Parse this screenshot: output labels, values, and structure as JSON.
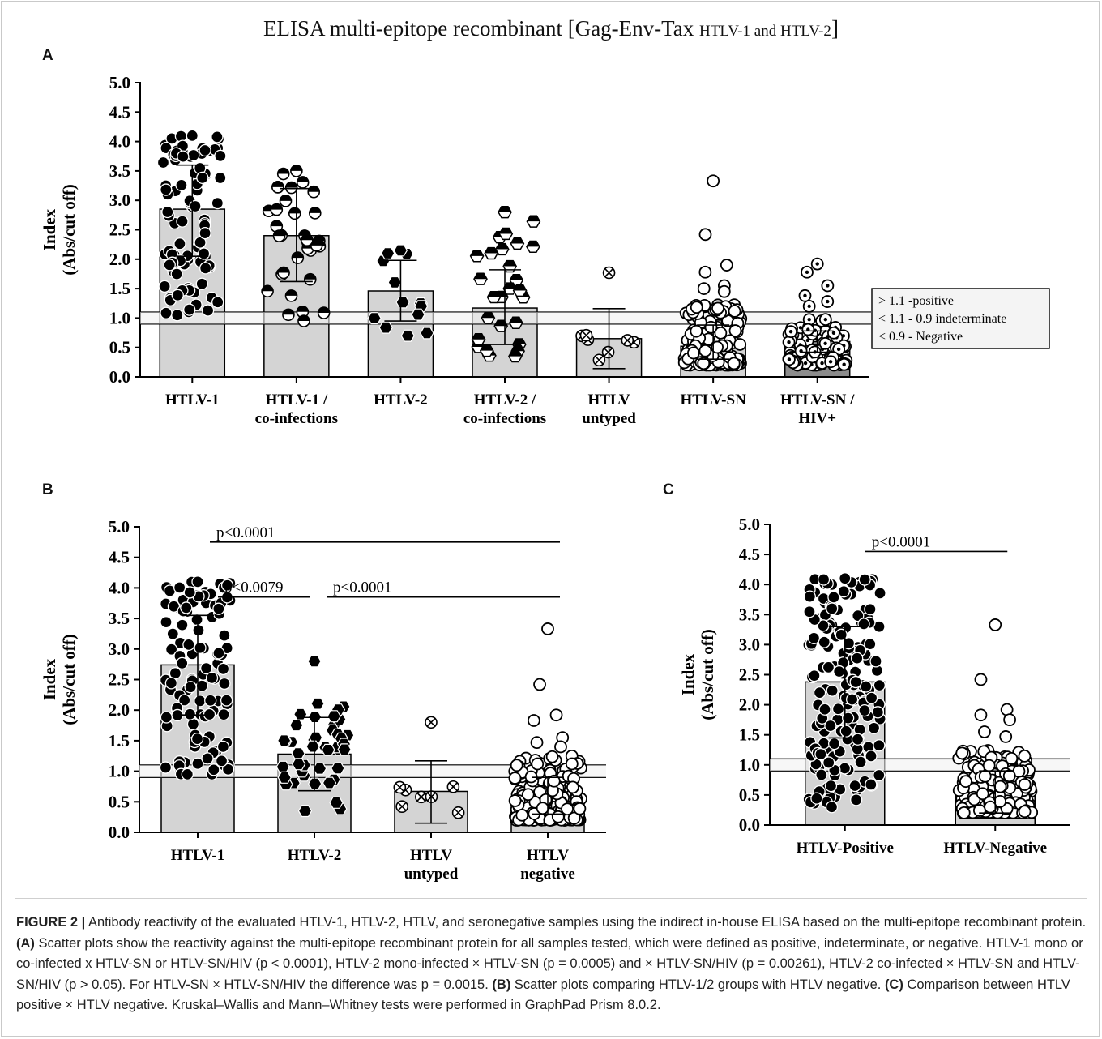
{
  "figure": {
    "title_main": "ELISA multi-epitope recombinant [Gag-Env-Tax",
    "title_sub": "HTLV-1 and HTLV-2",
    "title_close": "]",
    "panel_a": "A",
    "panel_b": "B",
    "panel_c": "C"
  },
  "caption": {
    "label": "FIGURE 2 |",
    "intro": "Antibody reactivity of the evaluated HTLV-1, HTLV-2, HTLV, and seronegative samples using the indirect in-house ELISA based on the multi-epitope recombinant protein.",
    "a_label": "(A)",
    "a_text": "Scatter plots show the reactivity against the multi-epitope recombinant protein for all samples tested, which were defined as positive, indeterminate, or negative. HTLV-1 mono or co-infected x HTLV-SN or HTLV-SN/HIV (p < 0.0001), HTLV-2 mono-infected × HTLV-SN (p = 0.0005) and × HTLV-SN/HIV (p = 0.00261), HTLV-2 co-infected × HTLV-SN and HTLV-SN/HIV (p > 0.05). For HTLV-SN × HTLV-SN/HIV the difference was p = 0.0015.",
    "b_label": "(B)",
    "b_text": "Scatter plots comparing HTLV-1/2 groups with HTLV negative.",
    "c_label": "(C)",
    "c_text": "Comparison between HTLV positive × HTLV negative. Kruskal–Wallis and Mann–Whitney tests were performed in GraphPad Prism 8.0.2."
  },
  "colors": {
    "bar": "#d4d4d4",
    "bar_dark": "#8c8c8c",
    "ink": "#000000"
  },
  "chart_data": [
    {
      "panel": "A",
      "type": "bar",
      "title": "ELISA multi-epitope recombinant [Gag-Env-Tax HTLV-1 and HTLV-2]",
      "ylabel": [
        "Index",
        "(Abs/cut off)"
      ],
      "ylim": [
        0,
        5.0
      ],
      "yticks": [
        "0.0",
        "0.5",
        "1.0",
        "1.5",
        "2.0",
        "2.5",
        "3.0",
        "3.5",
        "4.0",
        "4.5",
        "5.0"
      ],
      "cutoffs": [
        1.1,
        0.9
      ],
      "legend": [
        "> 1.1 -positive",
        "< 1.1 - 0.9 indeterminate",
        "< 0.9 - Negative"
      ],
      "legend_position": "right",
      "categories": [
        [
          "HTLV-1"
        ],
        [
          "HTLV-1 /",
          "co-infections"
        ],
        [
          "HTLV-2"
        ],
        [
          "HTLV-2 /",
          "co-infections"
        ],
        [
          "HTLV",
          "untyped"
        ],
        [
          "HTLV-SN"
        ],
        [
          "HTLV-SN /",
          "HIV+"
        ]
      ],
      "values": [
        2.85,
        2.4,
        1.46,
        1.17,
        0.65,
        0.52,
        0.6
      ],
      "error_upper": [
        3.6,
        3.2,
        1.98,
        1.82,
        1.16,
        0.88,
        0.78
      ],
      "error_lower": [
        2.05,
        1.62,
        0.95,
        0.55,
        0.14,
        0.3,
        0.42
      ],
      "markers": [
        "filled",
        "half",
        "hexagon",
        "hexagon-half",
        "crossed",
        "open",
        "open-dot"
      ],
      "bar_fill": [
        "light",
        "light",
        "light",
        "light",
        "light",
        "light",
        "dark"
      ],
      "points": [
        {
          "range": [
            1.05,
            4.1
          ],
          "n": 90,
          "extra": [
            4.1,
            1.05,
            3.85
          ]
        },
        {
          "range": [
            0.95,
            3.5
          ],
          "n": 30,
          "extra": [
            3.5,
            3.45,
            0.95
          ]
        },
        {
          "range": [
            0.7,
            2.15
          ],
          "n": 10,
          "extra": [
            2.15,
            2.1,
            0.7
          ]
        },
        {
          "range": [
            0.35,
            2.8
          ],
          "n": 24,
          "extra": [
            2.8,
            2.1,
            0.35
          ]
        },
        {
          "range": [
            0.25,
            0.75
          ],
          "n": 7,
          "extra": [
            1.77
          ]
        },
        {
          "range": [
            0.2,
            1.25
          ],
          "n": 180,
          "extra": [
            3.33,
            2.42,
            1.9,
            1.78,
            1.55,
            1.5,
            1.45
          ]
        },
        {
          "range": [
            0.2,
            1.0
          ],
          "n": 110,
          "extra": [
            1.92,
            1.78,
            1.55,
            1.38,
            1.28,
            1.2
          ]
        }
      ]
    },
    {
      "panel": "B",
      "type": "bar",
      "ylabel": [
        "Index",
        "(Abs/cut off)"
      ],
      "ylim": [
        0,
        5.0
      ],
      "yticks": [
        "0.0",
        "0.5",
        "1.0",
        "1.5",
        "2.0",
        "2.5",
        "3.0",
        "3.5",
        "4.0",
        "4.5",
        "5.0"
      ],
      "cutoffs": [
        1.1,
        0.9
      ],
      "categories": [
        [
          "HTLV-1"
        ],
        [
          "HTLV-2"
        ],
        [
          "HTLV",
          "untyped"
        ],
        [
          "HTLV",
          "negative"
        ]
      ],
      "values": [
        2.74,
        1.28,
        0.67,
        0.55
      ],
      "error_upper": [
        3.55,
        1.88,
        1.17,
        0.9
      ],
      "error_lower": [
        1.92,
        0.68,
        0.15,
        0.3
      ],
      "markers": [
        "filled",
        "hexagon",
        "crossed",
        "open"
      ],
      "points": [
        {
          "range": [
            0.95,
            4.1
          ],
          "n": 110,
          "extra": [
            4.1,
            0.95
          ]
        },
        {
          "range": [
            0.35,
            2.15
          ],
          "n": 42,
          "extra": [
            2.8,
            0.35
          ]
        },
        {
          "range": [
            0.25,
            0.75
          ],
          "n": 7,
          "extra": [
            1.8
          ]
        },
        {
          "range": [
            0.2,
            1.25
          ],
          "n": 240,
          "extra": [
            3.33,
            2.42,
            1.92,
            1.83,
            1.55,
            1.47,
            1.4
          ]
        }
      ],
      "significance": [
        {
          "from": 0,
          "to": 3,
          "level": 4.75,
          "label": "p<0.0001"
        },
        {
          "from": 0,
          "to": 1,
          "level": 3.85,
          "label": "p<0.0079"
        },
        {
          "from": 1,
          "to": 3,
          "level": 3.85,
          "label": "p<0.0001"
        }
      ]
    },
    {
      "panel": "C",
      "type": "bar",
      "ylabel": [
        "Index",
        "(Abs/cut off)"
      ],
      "ylim": [
        0,
        5.0
      ],
      "yticks": [
        "0.0",
        "0.5",
        "1.0",
        "1.5",
        "2.0",
        "2.5",
        "3.0",
        "3.5",
        "4.0",
        "4.5",
        "5.0"
      ],
      "cutoffs": [
        1.1,
        0.9
      ],
      "categories": [
        [
          "HTLV-Positive"
        ],
        [
          "HTLV-Negative"
        ]
      ],
      "values": [
        2.38,
        0.53
      ],
      "error_upper": [
        3.3,
        0.9
      ],
      "error_lower": [
        1.45,
        0.2
      ],
      "markers": [
        "filled",
        "open"
      ],
      "points": [
        {
          "range": [
            0.3,
            4.1
          ],
          "n": 170,
          "extra": [
            4.1,
            0.3,
            0.42
          ]
        },
        {
          "range": [
            0.2,
            1.25
          ],
          "n": 280,
          "extra": [
            3.33,
            2.42,
            1.92,
            1.83,
            1.75,
            1.55,
            1.47
          ]
        }
      ],
      "significance": [
        {
          "from": 0,
          "to": 1,
          "level": 4.55,
          "label": "p<0.0001"
        }
      ]
    }
  ]
}
